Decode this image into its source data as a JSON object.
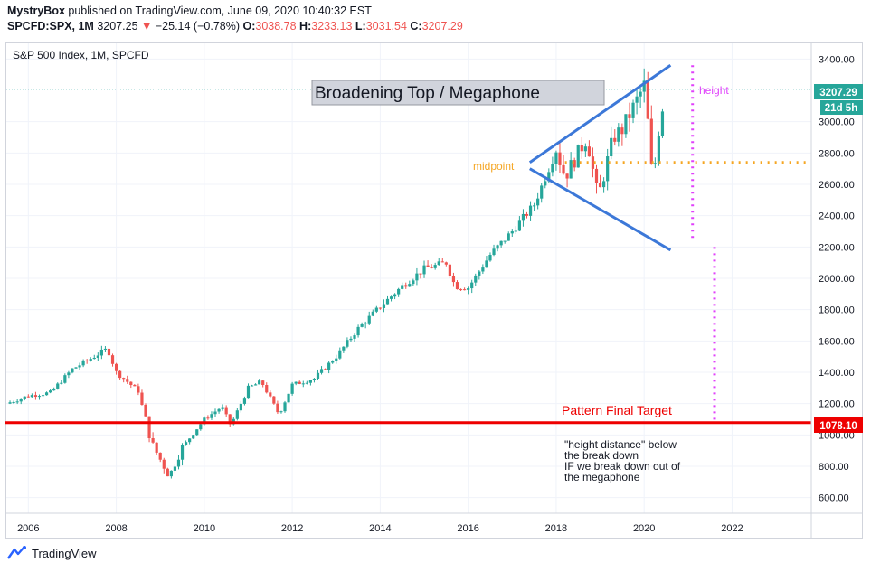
{
  "header": {
    "publisher": "MystryBox",
    "published_text": "published on TradingView.com, June 09, 2020 10:40:32 EST",
    "symbol": "SPCFD:SPX, 1M",
    "last": "3207.25",
    "change": "−25.14 (−0.78%)",
    "o_label": "O:",
    "o_val": "3038.78",
    "h_label": "H:",
    "h_val": "3233.13",
    "l_label": "L:",
    "l_val": "3031.54",
    "c_label": "C:",
    "c_val": "3207.29"
  },
  "chart_title": "S&P 500 Index, 1M, SPCFD",
  "annotations": {
    "pattern_box": "Broadening Top / Megaphone",
    "height": "height",
    "midpoint": "midpoint",
    "target": "Pattern Final Target",
    "note": [
      "\"height distance\" below",
      "the break down",
      "IF we break down out of",
      "the megaphone"
    ]
  },
  "price_tags": {
    "last_price": "3207.29",
    "countdown": "21d 5h",
    "target_price": "1078.10"
  },
  "footer": {
    "brand": "TradingView"
  },
  "colors": {
    "up": "#26a69a",
    "down": "#ef5350",
    "pattern_line": "#3c78d8",
    "target_line": "#ee0000",
    "height_marker": "#e040fb",
    "midpoint": "#f5a623",
    "grid": "#f0f3fa"
  },
  "chart_data": {
    "type": "candlestick",
    "title": "S&P 500 Index, 1M, SPCFD",
    "x_ticks": [
      "2006",
      "2008",
      "2010",
      "2012",
      "2014",
      "2016",
      "2018",
      "2020",
      "2022"
    ],
    "y_ticks": [
      "600.00",
      "800.00",
      "1000.00",
      "1200.00",
      "1400.00",
      "1600.00",
      "1800.00",
      "2000.00",
      "2200.00",
      "2400.00",
      "2600.00",
      "2800.00",
      "3000.00",
      "3400.00"
    ],
    "ylim": [
      500,
      3500
    ],
    "xlim": [
      2005.5,
      2023.8
    ],
    "series": [
      {
        "name": "SPX",
        "interval": "1M",
        "approx_monthly_close_path": [
          [
            2005.5,
            1200
          ],
          [
            2006.0,
            1250
          ],
          [
            2006.5,
            1270
          ],
          [
            2007.0,
            1420
          ],
          [
            2007.8,
            1550
          ],
          [
            2008.0,
            1400
          ],
          [
            2008.5,
            1280
          ],
          [
            2008.8,
            950
          ],
          [
            2009.2,
            735
          ],
          [
            2009.5,
            920
          ],
          [
            2010.0,
            1100
          ],
          [
            2010.4,
            1180
          ],
          [
            2010.6,
            1060
          ],
          [
            2011.0,
            1300
          ],
          [
            2011.3,
            1340
          ],
          [
            2011.7,
            1130
          ],
          [
            2012.0,
            1320
          ],
          [
            2012.5,
            1360
          ],
          [
            2013.0,
            1500
          ],
          [
            2013.5,
            1680
          ],
          [
            2014.0,
            1820
          ],
          [
            2014.5,
            1950
          ],
          [
            2015.0,
            2060
          ],
          [
            2015.5,
            2100
          ],
          [
            2015.7,
            1950
          ],
          [
            2016.0,
            1940
          ],
          [
            2016.5,
            2150
          ],
          [
            2017.0,
            2300
          ],
          [
            2017.5,
            2470
          ],
          [
            2018.0,
            2820
          ],
          [
            2018.2,
            2650
          ],
          [
            2018.7,
            2900
          ],
          [
            2018.95,
            2510
          ],
          [
            2019.3,
            2900
          ],
          [
            2019.5,
            2950
          ],
          [
            2020.0,
            3230
          ],
          [
            2020.1,
            2950
          ],
          [
            2020.2,
            2580
          ],
          [
            2020.3,
            2900
          ],
          [
            2020.4,
            3040
          ],
          [
            2020.45,
            3207
          ]
        ]
      }
    ],
    "horizontal_levels": [
      {
        "label": "last",
        "value": 3207.29
      },
      {
        "label": "midpoint",
        "value": 2740
      },
      {
        "label": "target",
        "value": 1078.1
      }
    ],
    "trendlines": [
      {
        "from": [
          2017.4,
          2740
        ],
        "to": [
          2020.6,
          3360
        ]
      },
      {
        "from": [
          2017.4,
          2700
        ],
        "to": [
          2020.6,
          2180
        ]
      }
    ],
    "legend": "none",
    "grid": true
  }
}
